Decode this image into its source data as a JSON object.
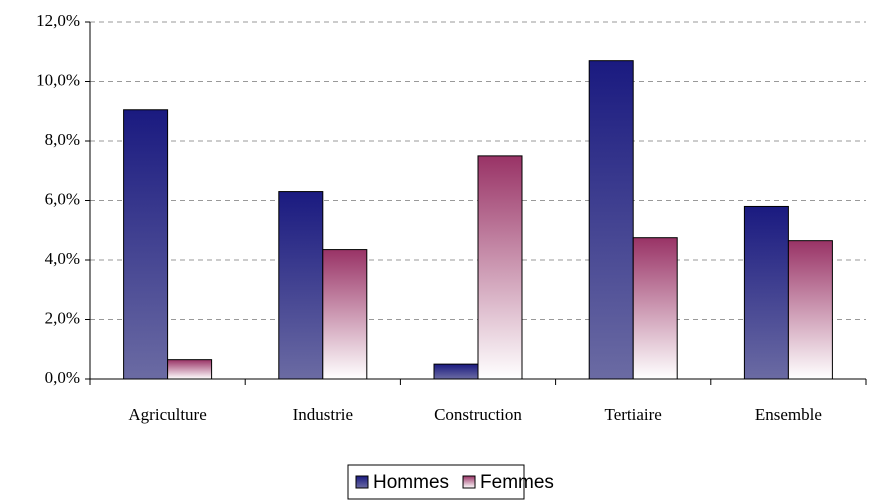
{
  "chart_data": {
    "type": "bar",
    "categories": [
      "Agriculture",
      "Industrie",
      "Construction",
      "Tertiaire",
      "Ensemble"
    ],
    "series": [
      {
        "name": "Hommes",
        "color": "#1a1a80",
        "values": [
          9.05,
          6.3,
          0.5,
          10.7,
          5.8
        ]
      },
      {
        "name": "Femmes",
        "color": "#993366",
        "values": [
          0.65,
          4.35,
          7.5,
          4.75,
          4.65
        ]
      }
    ],
    "ylim": [
      0,
      12
    ],
    "yticks": [
      {
        "value": 0,
        "label": "0,0%"
      },
      {
        "value": 2,
        "label": "2,0%"
      },
      {
        "value": 4,
        "label": "4,0%"
      },
      {
        "value": 6,
        "label": "6,0%"
      },
      {
        "value": 8,
        "label": "8,0%"
      },
      {
        "value": 10,
        "label": "10,0%"
      },
      {
        "value": 12,
        "label": "12,0%"
      }
    ],
    "grid": true,
    "legend": "bottom"
  }
}
